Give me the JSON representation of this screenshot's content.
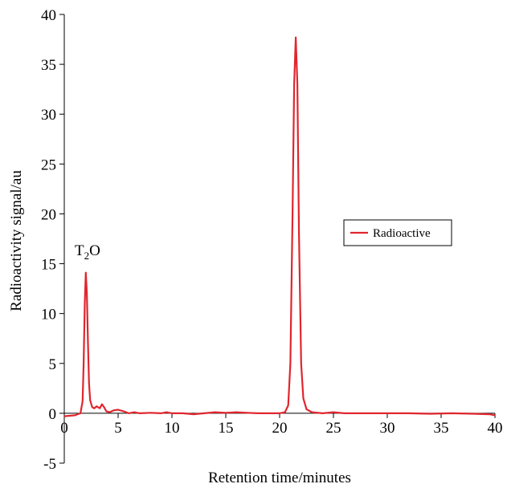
{
  "chart_data": {
    "type": "line",
    "title": "",
    "xlabel": "Retention time/minutes",
    "ylabel": "Radioactivity signal/au",
    "xlim": [
      0,
      40
    ],
    "ylim": [
      -5,
      40
    ],
    "xticks": [
      "0",
      "5",
      "10",
      "15",
      "20",
      "25",
      "30",
      "35",
      "40"
    ],
    "yticks": [
      "-5",
      "0",
      "5",
      "10",
      "15",
      "20",
      "25",
      "30",
      "35",
      "40"
    ],
    "grid": false,
    "legend": {
      "position": "right",
      "entries": [
        "Radioactive"
      ]
    },
    "annotations": [
      {
        "text": "T",
        "sub": "2",
        "after": "O",
        "x": 2.1,
        "y": 14.1
      }
    ],
    "colors": {
      "series": "#e0262e",
      "axis": "#000000"
    },
    "series": [
      {
        "name": "Radioactive",
        "x": [
          0,
          1.0,
          1.5,
          1.7,
          1.8,
          1.9,
          2.0,
          2.1,
          2.2,
          2.3,
          2.4,
          2.6,
          2.8,
          3.0,
          3.3,
          3.5,
          3.7,
          3.9,
          4.2,
          4.6,
          5.0,
          5.5,
          6.0,
          6.5,
          7.0,
          8.0,
          9.0,
          9.5,
          10.0,
          11.0,
          12.0,
          13.0,
          14.0,
          15.0,
          16.0,
          17.0,
          18.0,
          19.0,
          20.0,
          20.5,
          20.8,
          21.0,
          21.2,
          21.35,
          21.5,
          21.65,
          21.8,
          22.0,
          22.2,
          22.5,
          23.0,
          24.0,
          25.0,
          26.0,
          28.0,
          30.0,
          32.0,
          34.0,
          36.0,
          38.0,
          39.5,
          40.0
        ],
        "y": [
          -0.3,
          -0.2,
          0.0,
          1.2,
          5.0,
          11.0,
          14.1,
          12.0,
          7.0,
          3.0,
          1.3,
          0.6,
          0.5,
          0.7,
          0.5,
          0.9,
          0.6,
          0.2,
          0.1,
          0.3,
          0.35,
          0.2,
          0.0,
          0.1,
          0.0,
          0.05,
          0.0,
          0.1,
          0.0,
          0.0,
          -0.1,
          0.0,
          0.1,
          0.05,
          0.1,
          0.05,
          0.0,
          0.0,
          0.0,
          0.1,
          0.8,
          5.0,
          20.0,
          33.0,
          37.7,
          33.0,
          18.0,
          5.0,
          1.5,
          0.4,
          0.1,
          0.0,
          0.1,
          0.0,
          0.0,
          0.0,
          0.0,
          -0.05,
          0.0,
          -0.05,
          -0.1,
          -0.2
        ]
      }
    ]
  }
}
